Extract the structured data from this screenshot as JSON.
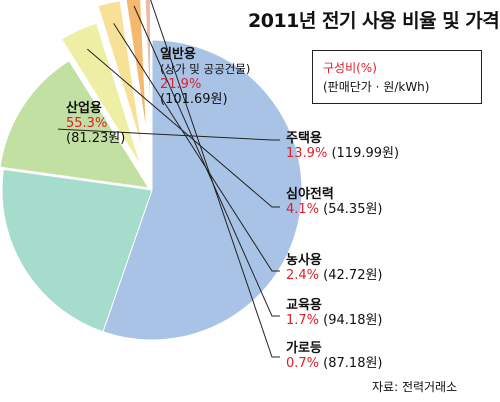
{
  "title": "2011년 전기 사용 비율 및 가격",
  "legend": {
    "title": "구성비(%)",
    "unit_note": "(판매단가 · 원/kWh)"
  },
  "source": "자료: 전력거래소",
  "colors": {
    "industrial": "#a9c3e6",
    "general": "#a5dccb",
    "residential": "#c2e0a2",
    "night": "#eeeea4",
    "agriculture": "#f6e197",
    "education": "#f4b96f",
    "street": "#f0b8a6",
    "accent": "#e0202a"
  },
  "chart_data": {
    "type": "pie",
    "title": "2011년 전기 사용 비율 및 가격",
    "slices": [
      {
        "label": "산업용",
        "share": 55.3,
        "share_text": "55.3%",
        "price_text": "(81.23원)",
        "price": 81.23
      },
      {
        "label": "일반용",
        "sublabel": "(상가 및 공공건물)",
        "share": 21.9,
        "share_text": "21.9%",
        "price_text": "(101.69원)",
        "price": 101.69
      },
      {
        "label": "주택용",
        "share": 13.9,
        "share_text": "13.9%",
        "price_text": "(119.99원)",
        "price": 119.99
      },
      {
        "label": "심야전력",
        "share": 4.1,
        "share_text": "4.1%",
        "price_text": "(54.35원)",
        "price": 54.35
      },
      {
        "label": "농사용",
        "share": 2.4,
        "share_text": "2.4%",
        "price_text": "(42.72원)",
        "price": 42.72
      },
      {
        "label": "교육용",
        "share": 1.7,
        "share_text": "1.7%",
        "price_text": "(94.18원)",
        "price": 94.18
      },
      {
        "label": "가로등",
        "share": 0.7,
        "share_text": "0.7%",
        "price_text": "(87.18원)",
        "price": 87.18
      }
    ]
  }
}
